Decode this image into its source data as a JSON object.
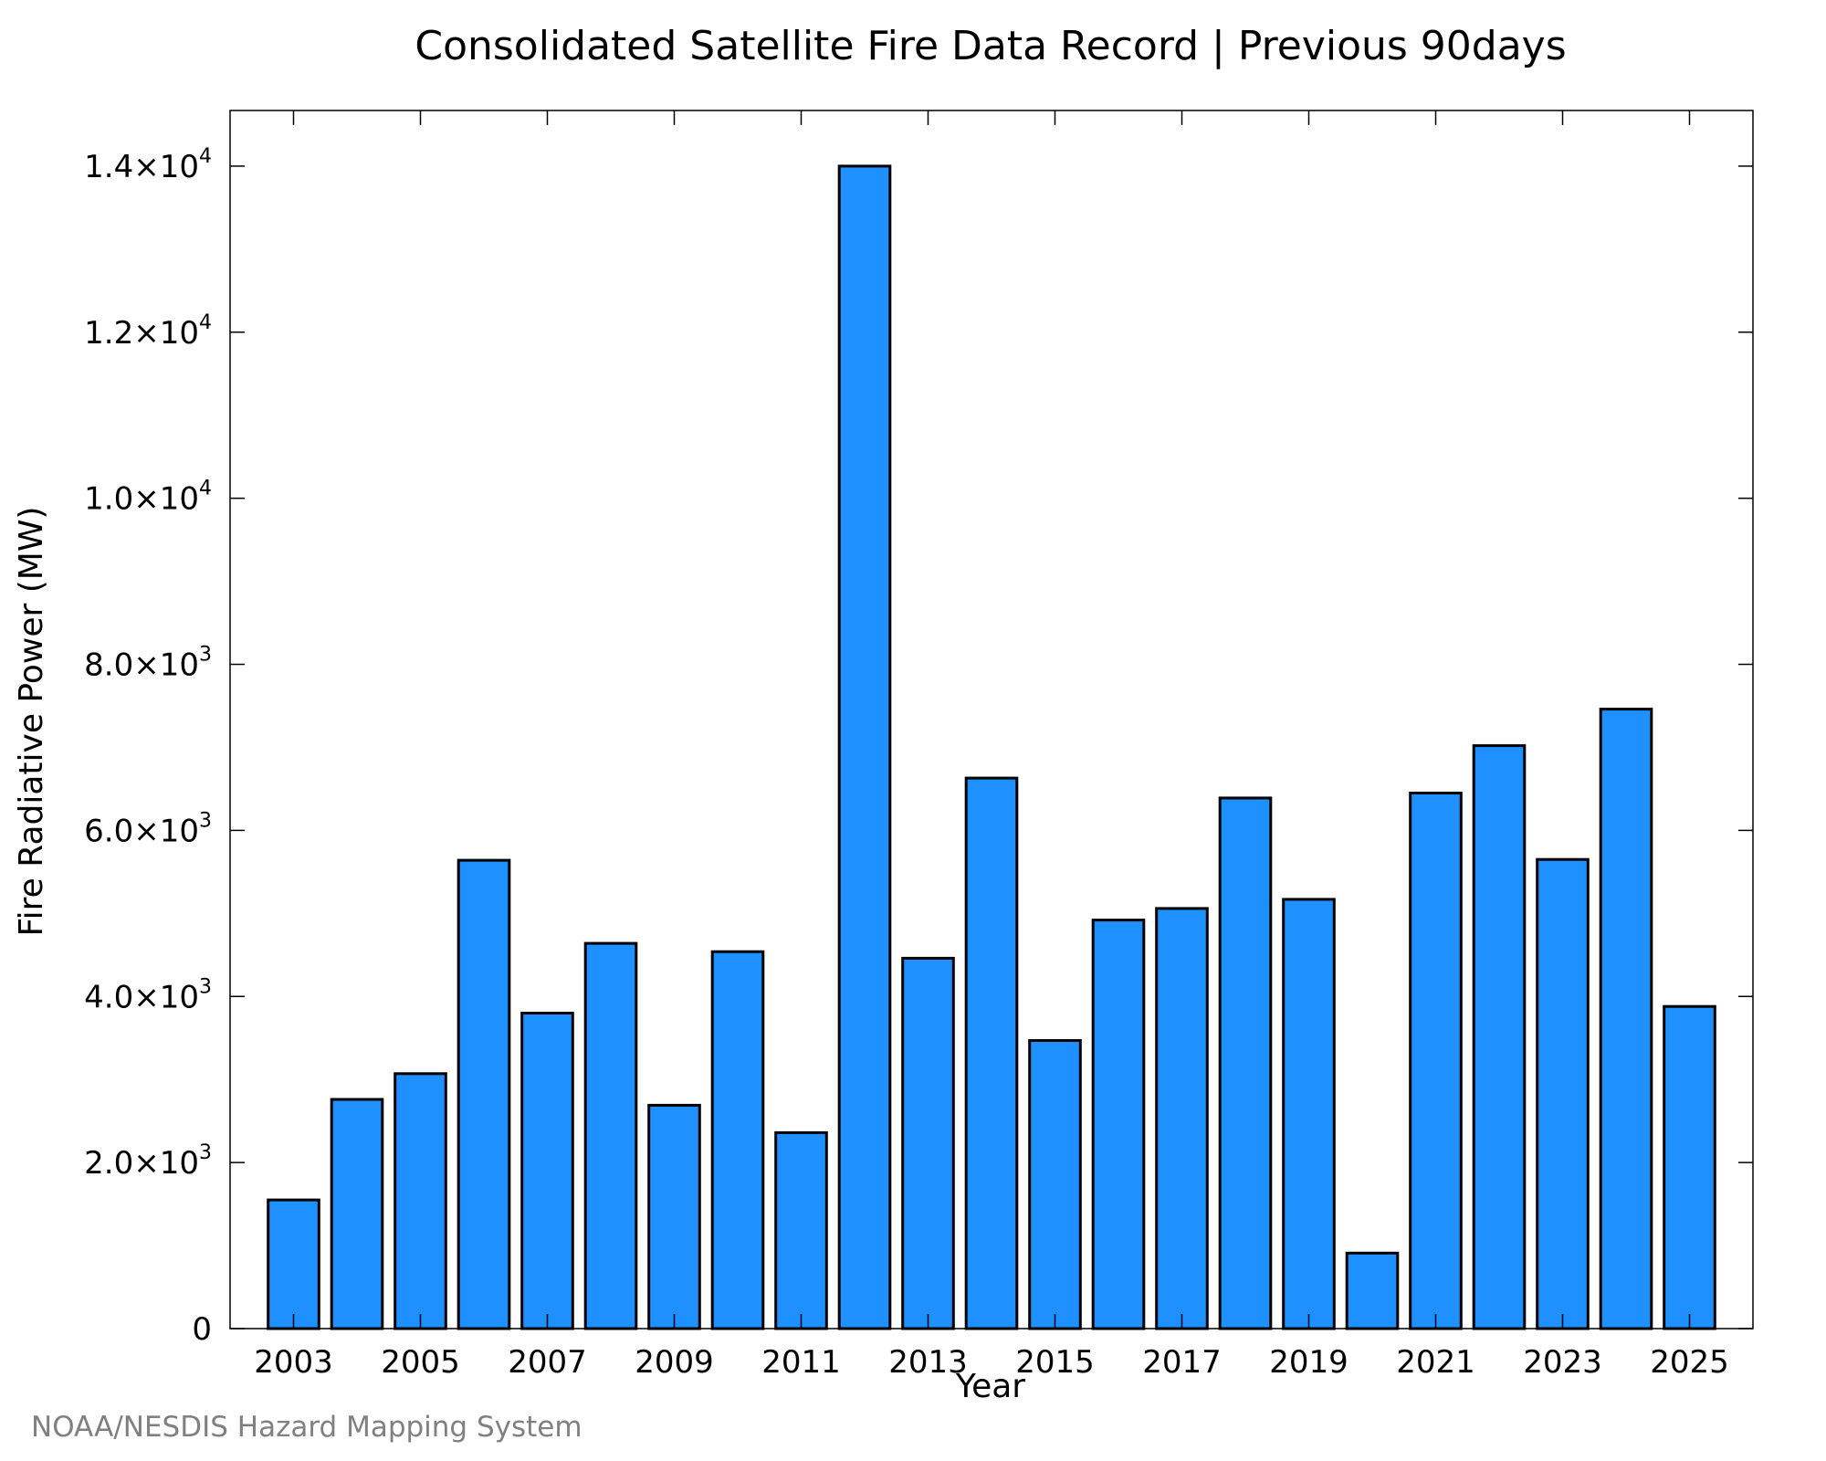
{
  "chart_data": {
    "type": "bar",
    "title": "Consolidated Satellite Fire Data Record | Previous 90days",
    "xlabel": "Year",
    "ylabel": "Fire Radiative Power (MW)",
    "categories": [
      2003,
      2004,
      2005,
      2006,
      2007,
      2008,
      2009,
      2010,
      2011,
      2012,
      2013,
      2014,
      2015,
      2016,
      2017,
      2018,
      2019,
      2020,
      2021,
      2022,
      2023,
      2024,
      2025
    ],
    "values": [
      1550,
      2760,
      3070,
      5640,
      3800,
      4640,
      2690,
      4540,
      2360,
      14000,
      4460,
      6630,
      3470,
      4920,
      5060,
      6390,
      5170,
      910,
      6450,
      7020,
      5650,
      7460,
      3880
    ],
    "xlim": [
      2002.0,
      2026.0
    ],
    "ylim": [
      0,
      14670
    ],
    "x_ticks": [
      "2003",
      "2005",
      "2007",
      "2009",
      "2011",
      "2013",
      "2015",
      "2017",
      "2019",
      "2021",
      "2023",
      "2025"
    ],
    "y_ticks": [
      {
        "value": 0,
        "mantissa": "0",
        "exp": ""
      },
      {
        "value": 2000,
        "mantissa": "2.0×10",
        "exp": "3"
      },
      {
        "value": 4000,
        "mantissa": "4.0×10",
        "exp": "3"
      },
      {
        "value": 6000,
        "mantissa": "6.0×10",
        "exp": "3"
      },
      {
        "value": 8000,
        "mantissa": "8.0×10",
        "exp": "3"
      },
      {
        "value": 10000,
        "mantissa": "1.0×10",
        "exp": "4"
      },
      {
        "value": 12000,
        "mantissa": "1.2×10",
        "exp": "4"
      },
      {
        "value": 14000,
        "mantissa": "1.4×10",
        "exp": "4"
      }
    ],
    "bar_color": "#1e90ff",
    "bar_edge_color": "#000000",
    "grid": false,
    "legend": "none"
  },
  "credit": "NOAA/NESDIS Hazard Mapping System"
}
